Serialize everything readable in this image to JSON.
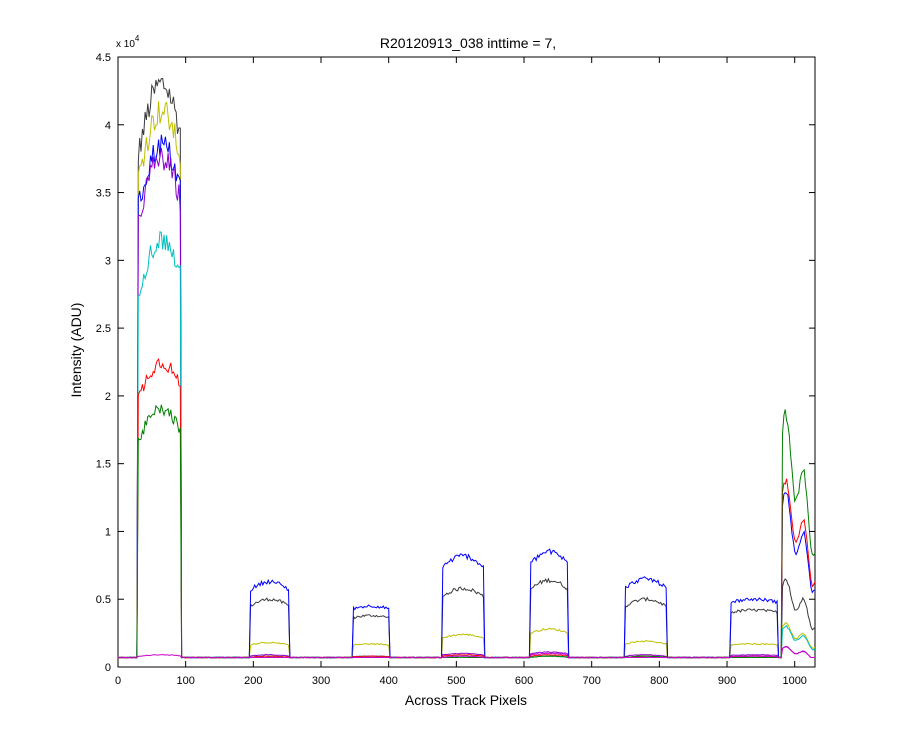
{
  "chart_data": {
    "type": "line",
    "title": "R20120913_038 inttime = 7,",
    "xlabel": "Across Track Pixels",
    "ylabel": "Intensity (ADU)",
    "y_multiplier_label": "x 10",
    "y_multiplier_exponent": "4",
    "xlim": [
      0,
      1030
    ],
    "ylim": [
      0,
      4.5
    ],
    "y_units_scale": 10000,
    "xticks": [
      0,
      100,
      200,
      300,
      400,
      500,
      600,
      700,
      800,
      900,
      1000
    ],
    "yticks": [
      0,
      0.5,
      1,
      1.5,
      2,
      2.5,
      3,
      3.5,
      4,
      4.5
    ],
    "ytick_labels": [
      "0",
      "0.5",
      "1",
      "1.5",
      "2",
      "2.5",
      "3",
      "3.5",
      "4",
      "4.5"
    ],
    "grid": false,
    "legend": false,
    "baseline": 0.07,
    "segments": [
      {
        "x0": 30,
        "x1": 92,
        "shape": "rising"
      },
      {
        "x0": 195,
        "x1": 253,
        "shape": "arch"
      },
      {
        "x0": 348,
        "x1": 400,
        "shape": "flat"
      },
      {
        "x0": 480,
        "x1": 540,
        "shape": "arch"
      },
      {
        "x0": 610,
        "x1": 665,
        "shape": "arch"
      },
      {
        "x0": 750,
        "x1": 810,
        "shape": "arch"
      },
      {
        "x0": 905,
        "x1": 975,
        "shape": "flat"
      },
      {
        "x0": 982,
        "x1": 1030,
        "shape": "decay"
      }
    ],
    "series": [
      {
        "color": "#3a3a3a",
        "peaks": [
          4.3,
          0.5,
          0.38,
          0.58,
          0.64,
          0.5,
          0.42,
          0.6
        ]
      },
      {
        "color": "#bfbf00",
        "peaks": [
          4.1,
          0.18,
          0.17,
          0.24,
          0.28,
          0.19,
          0.17,
          0.3
        ]
      },
      {
        "color": "#0000ff",
        "peaks": [
          3.85,
          0.63,
          0.45,
          0.82,
          0.85,
          0.65,
          0.5,
          1.2
        ]
      },
      {
        "color": "#8b00cc",
        "peaks": [
          3.75,
          0.09,
          0.08,
          0.1,
          0.11,
          0.09,
          0.09,
          0.14
        ]
      },
      {
        "color": "#00bfbf",
        "peaks": [
          3.15,
          0.08,
          0.08,
          0.08,
          0.08,
          0.08,
          0.08,
          0.28
        ]
      },
      {
        "color": "#ff0000",
        "peaks": [
          2.25,
          0.08,
          0.08,
          0.09,
          0.09,
          0.08,
          0.08,
          1.3
        ]
      },
      {
        "color": "#007f00",
        "peaks": [
          1.9,
          0.07,
          0.07,
          0.07,
          0.08,
          0.08,
          0.07,
          1.75
        ]
      },
      {
        "color": "#cc00cc",
        "peaks": [
          0.09,
          0.07,
          0.07,
          0.08,
          0.1,
          0.07,
          0.08,
          0.14
        ]
      }
    ]
  }
}
